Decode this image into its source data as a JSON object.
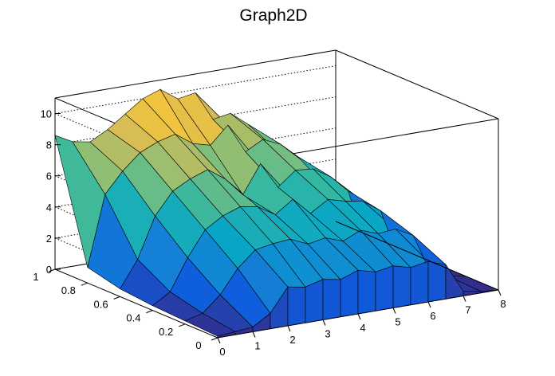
{
  "chart_data": {
    "type": "surface",
    "title": "Graph2D",
    "xlabel": "",
    "ylabel": "",
    "zlabel": "",
    "xlim": [
      0,
      8
    ],
    "ylim": [
      0,
      1
    ],
    "zlim": [
      0,
      11
    ],
    "x_ticks": [
      "0",
      "1",
      "2",
      "3",
      "4",
      "5",
      "6",
      "7",
      "8"
    ],
    "y_ticks": [
      "0",
      "0.2",
      "0.4",
      "0.6",
      "0.8",
      "1"
    ],
    "z_ticks": [
      "0",
      "2",
      "4",
      "6",
      "8",
      "10"
    ],
    "grid": true,
    "palette": [
      "#352a87",
      "#0f5cdd",
      "#1481d6",
      "#06a4ca",
      "#2eb7a4",
      "#87bf77",
      "#d1bb59",
      "#fec832",
      "#f9fb0e"
    ],
    "grid_x": [
      0,
      0.5,
      1,
      1.5,
      2,
      2.5,
      3,
      3.5,
      4,
      4.5,
      5,
      5.5,
      6,
      6.5,
      7,
      7.5,
      8
    ],
    "grid_y": [
      0,
      0.2,
      0.4,
      0.6,
      0.8,
      1
    ],
    "z": [
      [
        0.1,
        0.2,
        0.3,
        1.0,
        2.5,
        2.3,
        2.6,
        2.4,
        2.8,
        2.5,
        2.7,
        2.4,
        2.6,
        2.2,
        0.3,
        0.1,
        0.0
      ],
      [
        0.2,
        0.5,
        1.5,
        3.0,
        4.0,
        4.2,
        4.3,
        3.8,
        4.0,
        3.6,
        4.1,
        3.7,
        3.8,
        3.2,
        0.6,
        0.2,
        0.0
      ],
      [
        0.3,
        1.0,
        3.0,
        4.6,
        5.3,
        5.7,
        5.5,
        4.8,
        5.6,
        4.5,
        5.2,
        4.9,
        4.7,
        3.9,
        0.7,
        0.2,
        0.0
      ],
      [
        0.5,
        2.2,
        4.8,
        6.2,
        6.8,
        7.2,
        6.4,
        5.2,
        7.0,
        5.3,
        6.2,
        6.1,
        5.4,
        4.3,
        0.6,
        0.2,
        0.0
      ],
      [
        1.0,
        5.5,
        6.8,
        7.8,
        8.3,
        8.6,
        7.8,
        7.5,
        8.6,
        6.7,
        7.3,
        6.8,
        5.8,
        4.4,
        0.5,
        0.1,
        0.0
      ],
      [
        8.6,
        8.0,
        7.8,
        8.4,
        9.2,
        10.0,
        10.4,
        9.6,
        9.8,
        7.9,
        8.1,
        7.2,
        6.0,
        4.2,
        0.4,
        0.1,
        0.0
      ]
    ]
  }
}
